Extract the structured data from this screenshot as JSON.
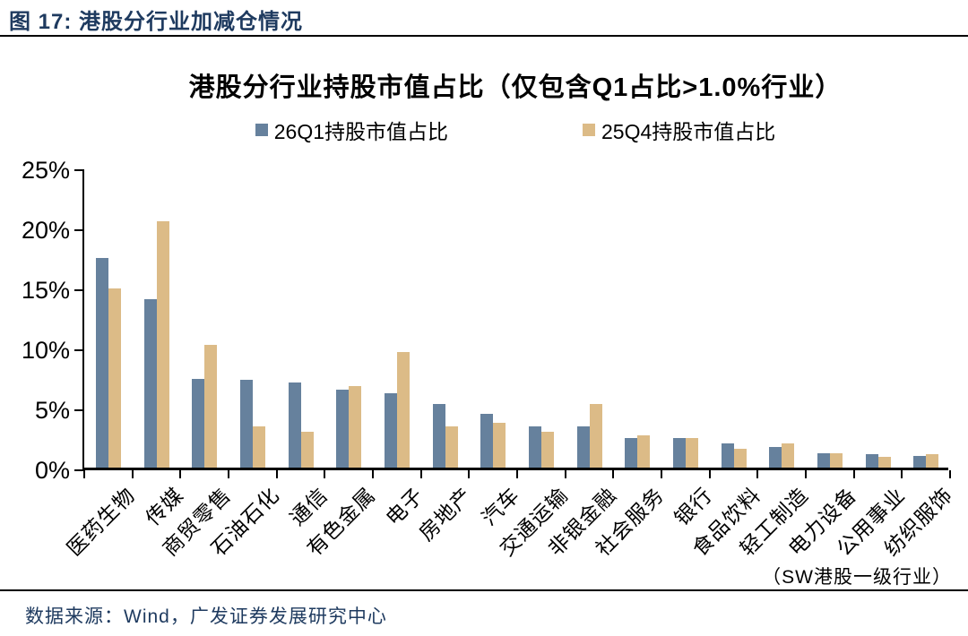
{
  "header": {
    "title": "图 17:  港股分行业加减仓情况"
  },
  "footer": {
    "source": "数据来源：Wind，广发证券发展研究中心"
  },
  "colors": {
    "series_blue": "#66819D",
    "series_tan": "#DCBB87",
    "heading_navy": "#1E3A5F",
    "axis_black": "#000000"
  },
  "chart_data": {
    "type": "bar",
    "title": "港股分行业持股市值占比（仅包含Q1占比>1.0%行业）",
    "annotation": "（SW港股一级行业）",
    "xlabel": "",
    "ylabel": "",
    "ylim": [
      0,
      25
    ],
    "yticks": [
      "0%",
      "5%",
      "10%",
      "15%",
      "20%",
      "25%"
    ],
    "ytick_values": [
      0,
      5,
      10,
      15,
      20,
      25
    ],
    "grid": false,
    "legend_position": "top",
    "categories": [
      "医药生物",
      "传媒",
      "商贸零售",
      "石油石化",
      "通信",
      "有色金属",
      "电子",
      "房地产",
      "汽车",
      "交通运输",
      "非银金融",
      "社会服务",
      "银行",
      "食品饮料",
      "轻工制造",
      "电力设备",
      "公用事业",
      "纺织服饰"
    ],
    "series": [
      {
        "name": "26Q1持股市值占比",
        "color": "#66819D",
        "values": [
          17.5,
          14.0,
          7.4,
          7.3,
          7.1,
          6.5,
          6.2,
          5.3,
          4.5,
          3.4,
          3.4,
          2.5,
          2.5,
          2.0,
          1.7,
          1.2,
          1.1,
          1.0
        ]
      },
      {
        "name": "25Q4持股市值占比",
        "color": "#DCBB87",
        "values": [
          14.9,
          20.5,
          10.2,
          3.4,
          3.0,
          6.8,
          9.6,
          3.4,
          3.7,
          3.0,
          5.3,
          2.7,
          2.5,
          1.6,
          2.0,
          1.2,
          0.9,
          1.1
        ]
      }
    ]
  }
}
